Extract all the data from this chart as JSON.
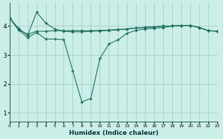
{
  "xlabel": "Humidex (Indice chaleur)",
  "bg_color": "#cceee8",
  "line_color": "#1a6b5a",
  "grid_color": "#aaccc8",
  "curve1_x": [
    0,
    1,
    2,
    3,
    4,
    5,
    6,
    7,
    8,
    9,
    10,
    11,
    12,
    13,
    14,
    15,
    16,
    17,
    18,
    19,
    20,
    21,
    22,
    23
  ],
  "curve1_y": [
    4.28,
    3.92,
    3.68,
    4.48,
    4.1,
    3.9,
    3.82,
    3.8,
    3.8,
    3.82,
    3.83,
    3.85,
    3.87,
    3.9,
    3.93,
    3.96,
    3.97,
    4.0,
    4.0,
    4.02,
    4.02,
    3.95,
    3.84,
    3.82
  ],
  "curve2_x": [
    0,
    1,
    2,
    3,
    4,
    5,
    6,
    7,
    8,
    9,
    10,
    11,
    12,
    13,
    14,
    15,
    16,
    17,
    18,
    19,
    20,
    21,
    22,
    23
  ],
  "curve2_y": [
    4.28,
    3.87,
    3.72,
    3.82,
    3.82,
    3.84,
    3.84,
    3.84,
    3.84,
    3.84,
    3.85,
    3.86,
    3.88,
    3.9,
    3.93,
    3.95,
    3.97,
    4.0,
    4.0,
    4.02,
    4.02,
    3.95,
    3.84,
    3.82
  ],
  "curve3_x": [
    0,
    1,
    2,
    3,
    4,
    5,
    6,
    7,
    8,
    9,
    10,
    11,
    12,
    13,
    14,
    15,
    16,
    17,
    18,
    19,
    20,
    21,
    22,
    23
  ],
  "curve3_y": [
    4.28,
    3.87,
    3.6,
    3.78,
    3.55,
    3.55,
    3.53,
    2.45,
    1.38,
    1.5,
    2.88,
    3.38,
    3.52,
    3.75,
    3.85,
    3.9,
    3.92,
    3.95,
    4.0,
    4.02,
    4.02,
    3.95,
    3.84,
    3.82
  ],
  "xlim": [
    0,
    23
  ],
  "ylim": [
    0.7,
    4.8
  ],
  "yticks": [
    1,
    2,
    3,
    4
  ],
  "xticks": [
    0,
    1,
    2,
    3,
    4,
    5,
    6,
    7,
    8,
    9,
    10,
    11,
    12,
    13,
    14,
    15,
    16,
    17,
    18,
    19,
    20,
    21,
    22,
    23
  ]
}
